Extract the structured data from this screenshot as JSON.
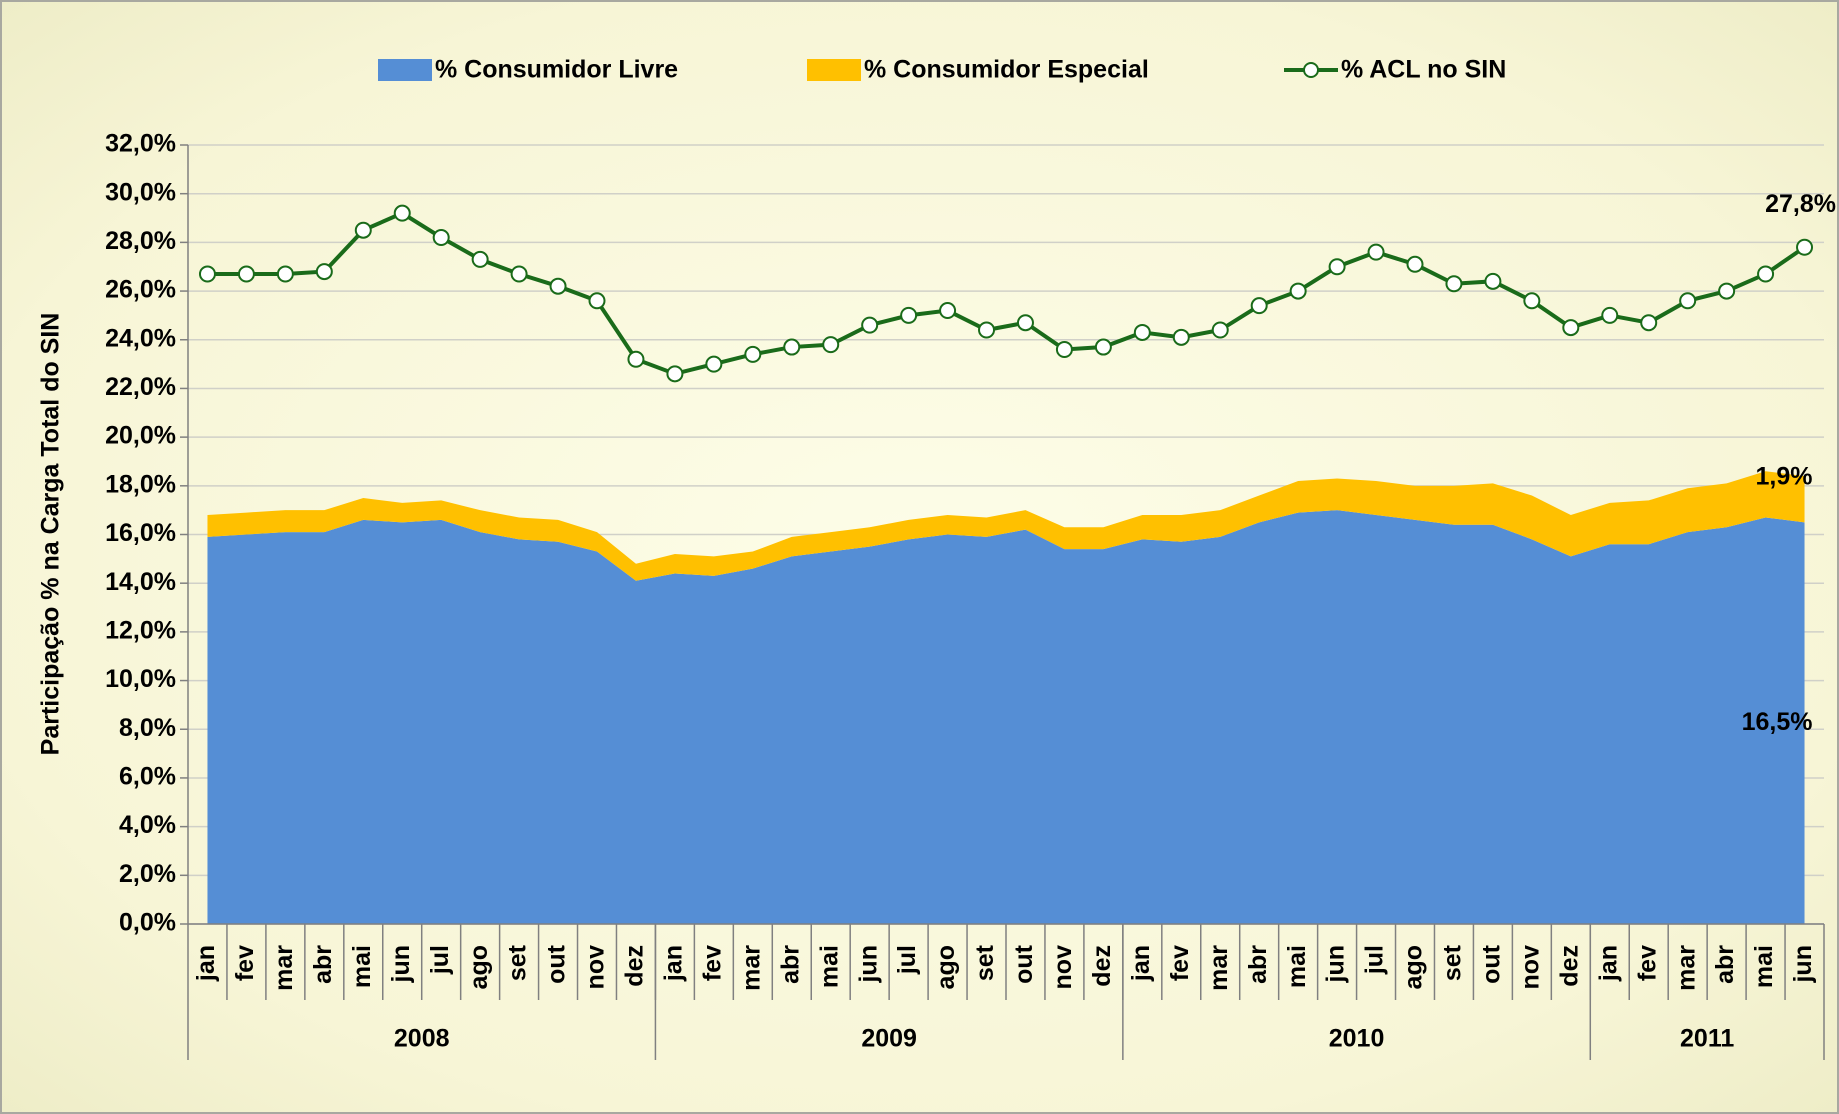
{
  "chart_data": {
    "type": "stacked-area-line",
    "y_axis_label": "Participação % na Carga Total do SIN",
    "category_groups": [
      {
        "label": "2008",
        "categories": [
          "jan",
          "fev",
          "mar",
          "abr",
          "mai",
          "jun",
          "jul",
          "ago",
          "set",
          "out",
          "nov",
          "dez"
        ]
      },
      {
        "label": "2009",
        "categories": [
          "jan",
          "fev",
          "mar",
          "abr",
          "mai",
          "jun",
          "jul",
          "ago",
          "set",
          "out",
          "nov",
          "dez"
        ]
      },
      {
        "label": "2010",
        "categories": [
          "jan",
          "fev",
          "mar",
          "abr",
          "mai",
          "jun",
          "jul",
          "ago",
          "set",
          "out",
          "nov",
          "dez"
        ]
      },
      {
        "label": "2011",
        "categories": [
          "jan",
          "fev",
          "mar",
          "abr",
          "mai",
          "jun"
        ]
      }
    ],
    "series": [
      {
        "name": "% Consumidor Livre",
        "kind": "area",
        "color": "#558ed5",
        "values": [
          15.9,
          16.0,
          16.1,
          16.1,
          16.6,
          16.5,
          16.6,
          16.1,
          15.8,
          15.7,
          15.3,
          14.1,
          14.4,
          14.3,
          14.6,
          15.1,
          15.3,
          15.5,
          15.8,
          16.0,
          15.9,
          16.2,
          15.4,
          15.4,
          15.8,
          15.7,
          15.9,
          16.5,
          16.9,
          17.0,
          16.8,
          16.6,
          16.4,
          16.4,
          15.8,
          15.1,
          15.6,
          15.6,
          16.1,
          16.3,
          16.7,
          16.5
        ],
        "value_labels": [
          null,
          null,
          null,
          null,
          null,
          null,
          null,
          null,
          null,
          null,
          null,
          null,
          null,
          null,
          null,
          null,
          null,
          null,
          null,
          null,
          null,
          null,
          null,
          null,
          null,
          null,
          null,
          null,
          null,
          null,
          null,
          null,
          null,
          null,
          null,
          null,
          null,
          null,
          null,
          null,
          null,
          "16,5%"
        ]
      },
      {
        "name": "% Consumidor Especial",
        "kind": "area",
        "color": "#ffc000",
        "values": [
          0.9,
          0.9,
          0.9,
          0.9,
          0.9,
          0.8,
          0.8,
          0.9,
          0.9,
          0.9,
          0.8,
          0.7,
          0.8,
          0.8,
          0.7,
          0.8,
          0.8,
          0.8,
          0.8,
          0.8,
          0.8,
          0.8,
          0.9,
          0.9,
          1.0,
          1.1,
          1.1,
          1.1,
          1.3,
          1.3,
          1.4,
          1.4,
          1.6,
          1.7,
          1.8,
          1.7,
          1.7,
          1.8,
          1.8,
          1.8,
          1.9,
          1.9
        ],
        "value_labels": [
          null,
          null,
          null,
          null,
          null,
          null,
          null,
          null,
          null,
          null,
          null,
          null,
          null,
          null,
          null,
          null,
          null,
          null,
          null,
          null,
          null,
          null,
          null,
          null,
          null,
          null,
          null,
          null,
          null,
          null,
          null,
          null,
          null,
          null,
          null,
          null,
          null,
          null,
          null,
          null,
          null,
          "1,9%"
        ]
      },
      {
        "name": "% ACL no SIN",
        "kind": "line",
        "color": "#1a6b1a",
        "values": [
          26.7,
          26.7,
          26.7,
          26.8,
          28.5,
          29.2,
          28.2,
          27.3,
          26.7,
          26.2,
          25.6,
          23.2,
          22.6,
          23.0,
          23.4,
          23.7,
          23.8,
          24.6,
          25.0,
          25.2,
          24.4,
          24.7,
          23.6,
          23.7,
          24.3,
          24.1,
          24.4,
          25.4,
          26.0,
          27.0,
          27.6,
          27.1,
          26.3,
          26.4,
          25.6,
          24.5,
          25.0,
          24.7,
          25.6,
          26.0,
          26.7,
          27.8
        ],
        "value_labels": [
          null,
          null,
          null,
          null,
          null,
          null,
          null,
          null,
          null,
          null,
          null,
          null,
          null,
          null,
          null,
          null,
          null,
          null,
          null,
          null,
          null,
          null,
          null,
          null,
          null,
          null,
          null,
          null,
          null,
          null,
          null,
          null,
          null,
          null,
          null,
          null,
          null,
          null,
          null,
          null,
          null,
          "27,8%"
        ]
      }
    ],
    "ylim": [
      0,
      32
    ],
    "yticks": [
      {
        "value": 0,
        "label": "0,0%"
      },
      {
        "value": 2,
        "label": "2,0%"
      },
      {
        "value": 4,
        "label": "4,0%"
      },
      {
        "value": 6,
        "label": "6,0%"
      },
      {
        "value": 8,
        "label": "8,0%"
      },
      {
        "value": 10,
        "label": "10,0%"
      },
      {
        "value": 12,
        "label": "12,0%"
      },
      {
        "value": 14,
        "label": "14,0%"
      },
      {
        "value": 16,
        "label": "16,0%"
      },
      {
        "value": 18,
        "label": "18,0%"
      },
      {
        "value": 20,
        "label": "20,0%"
      },
      {
        "value": 22,
        "label": "22,0%"
      },
      {
        "value": 24,
        "label": "24,0%"
      },
      {
        "value": 26,
        "label": "26,0%"
      },
      {
        "value": 28,
        "label": "28,0%"
      },
      {
        "value": 30,
        "label": "30,0%"
      },
      {
        "value": 32,
        "label": "32,0%"
      }
    ],
    "grid": true,
    "legend": "top"
  }
}
